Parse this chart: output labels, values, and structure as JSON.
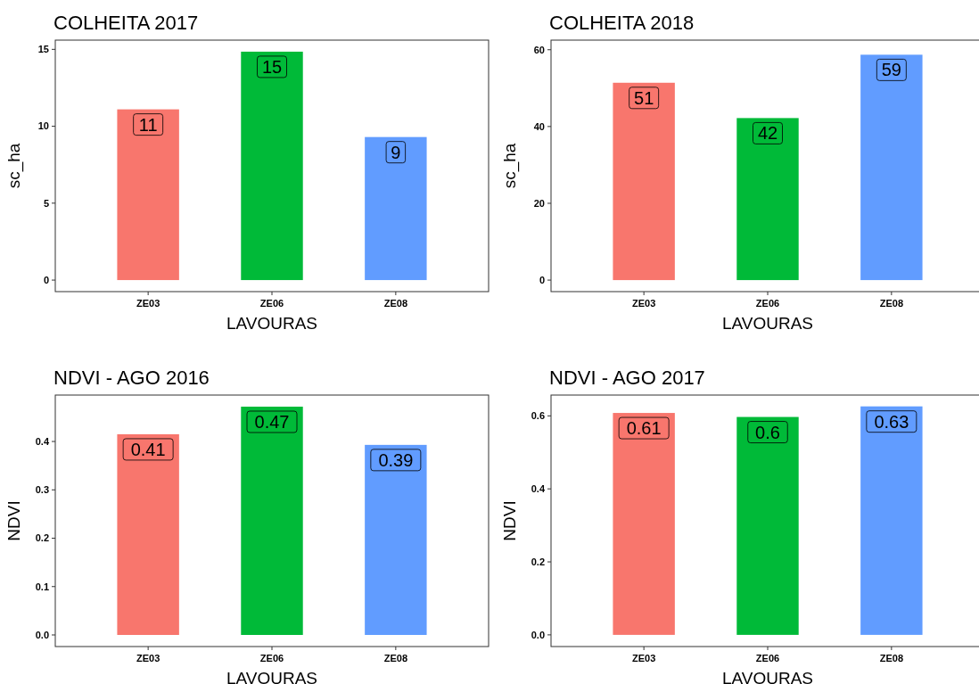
{
  "chart_data": [
    {
      "type": "bar",
      "title": "COLHEITA 2017",
      "xlabel": "LAVOURAS",
      "ylabel": "sc_ha",
      "categories": [
        "ZE03",
        "ZE06",
        "ZE08"
      ],
      "colors": [
        "#f8766d",
        "#00ba38",
        "#619cff"
      ],
      "values": [
        11.1,
        14.85,
        9.3
      ],
      "value_labels": [
        "11",
        "15",
        "9"
      ],
      "ylim": [
        -0.75,
        15.6
      ],
      "yticks": [
        0,
        5,
        10,
        15
      ],
      "grid": false
    },
    {
      "type": "bar",
      "title": "COLHEITA 2018",
      "xlabel": "LAVOURAS",
      "ylabel": "sc_ha",
      "categories": [
        "ZE03",
        "ZE06",
        "ZE08"
      ],
      "colors": [
        "#f8766d",
        "#00ba38",
        "#619cff"
      ],
      "values": [
        51.4,
        42.2,
        58.7
      ],
      "value_labels": [
        "51",
        "42",
        "59"
      ],
      "ylim": [
        -3,
        62.5
      ],
      "yticks": [
        0,
        20,
        40,
        60
      ],
      "grid": false
    },
    {
      "type": "bar",
      "title": "NDVI - AGO 2016",
      "xlabel": "LAVOURAS",
      "ylabel": "NDVI",
      "categories": [
        "ZE03",
        "ZE06",
        "ZE08"
      ],
      "colors": [
        "#f8766d",
        "#00ba38",
        "#619cff"
      ],
      "values": [
        0.415,
        0.472,
        0.393
      ],
      "value_labels": [
        "0.41",
        "0.47",
        "0.39"
      ],
      "ylim": [
        -0.024,
        0.496
      ],
      "yticks": [
        {
          "value": 0,
          "label": "0.0"
        },
        0.1,
        0.2,
        0.3,
        0.4
      ],
      "grid": false
    },
    {
      "type": "bar",
      "title": "NDVI - AGO 2017",
      "xlabel": "LAVOURAS",
      "ylabel": "NDVI",
      "categories": [
        "ZE03",
        "ZE06",
        "ZE08"
      ],
      "colors": [
        "#f8766d",
        "#00ba38",
        "#619cff"
      ],
      "values": [
        0.608,
        0.597,
        0.626
      ],
      "value_labels": [
        "0.61",
        "0.6",
        "0.63"
      ],
      "ylim": [
        -0.032,
        0.657
      ],
      "yticks": [
        {
          "value": 0,
          "label": "0.0"
        },
        0.2,
        0.4,
        0.6
      ],
      "grid": false
    }
  ]
}
